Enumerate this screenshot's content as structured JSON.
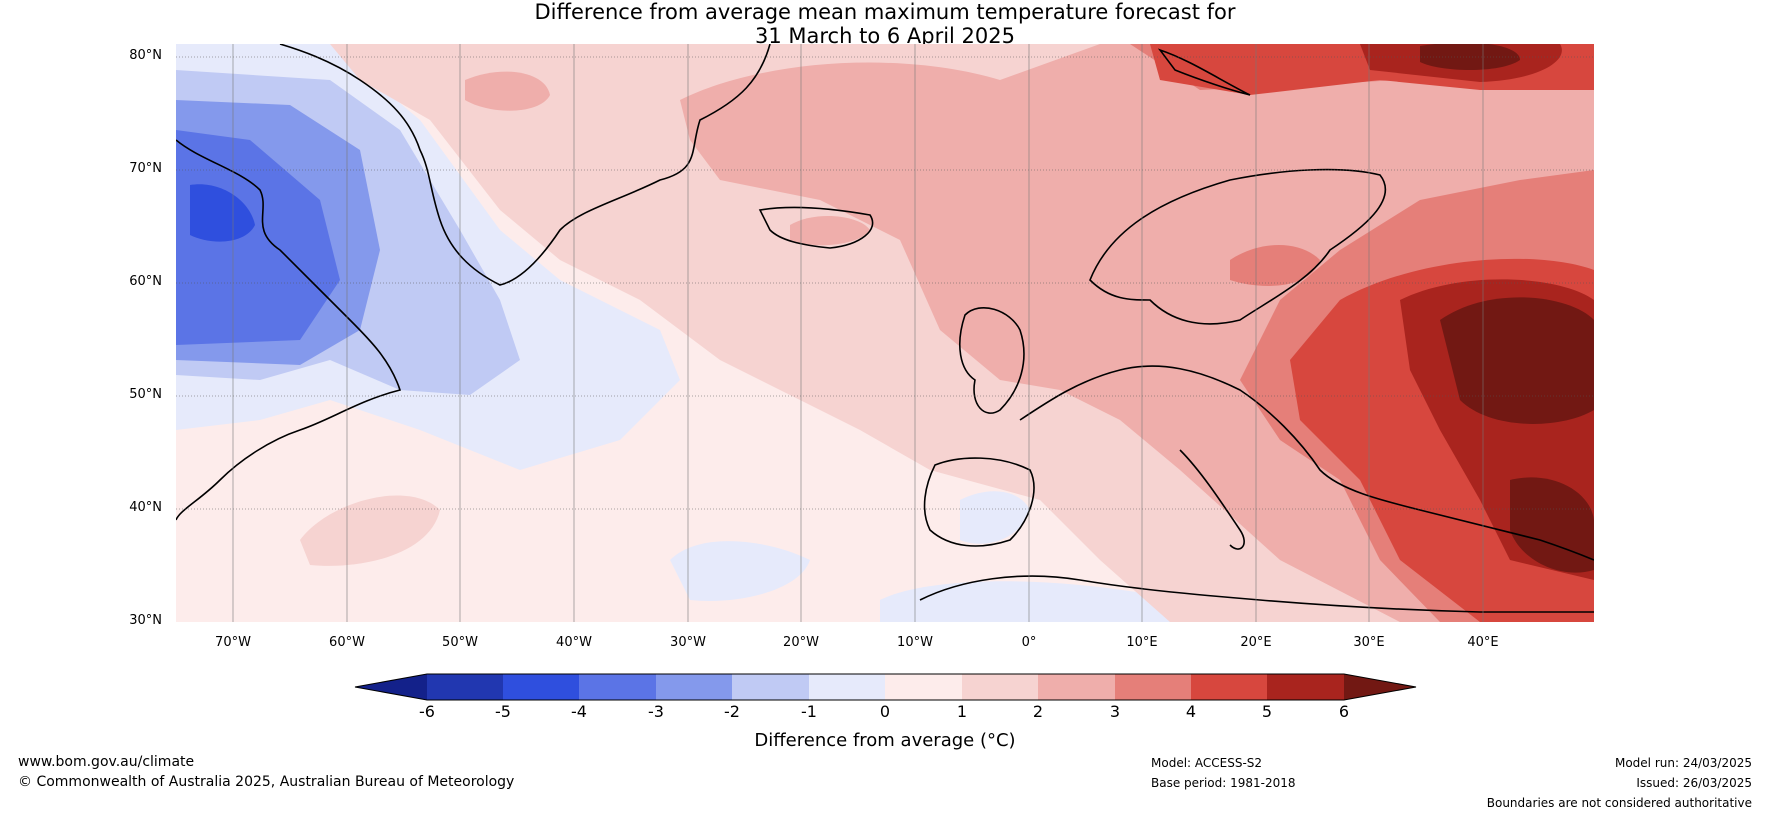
{
  "title": {
    "line1": "Difference from average mean maximum temperature forecast for",
    "line2": "31 March to 6 April 2025"
  },
  "map": {
    "lat_labels": [
      "80°N",
      "70°N",
      "60°N",
      "50°N",
      "40°N",
      "30°N"
    ],
    "lon_labels": [
      "70°W",
      "60°W",
      "50°W",
      "40°W",
      "30°W",
      "20°W",
      "10°W",
      "0°",
      "10°E",
      "20°E",
      "30°E",
      "40°E"
    ],
    "colors": {
      "m6": "#13218a",
      "m5": "#2137b0",
      "m4": "#2f4fde",
      "m3": "#5b74e6",
      "m2": "#8499ec",
      "m1": "#c0caf4",
      "m0": "#e6eafb",
      "p0": "#fdeceb",
      "p1": "#f6d3d1",
      "p2": "#efaeab",
      "p3": "#e57f79",
      "p4": "#d7473e",
      "p5": "#a9241e",
      "p6": "#721813"
    }
  },
  "colorbar": {
    "ticks": [
      "-6",
      "-5",
      "-4",
      "-3",
      "-2",
      "-1",
      "0",
      "1",
      "2",
      "3",
      "4",
      "5",
      "6"
    ],
    "label": "Difference from average (°C)"
  },
  "footer": {
    "website": "www.bom.gov.au/climate",
    "copyright": "© Commonwealth of Australia 2025, Australian Bureau of Meteorology",
    "model": "Model: ACCESS-S2",
    "base_period": "Base period: 1981-2018",
    "model_run": "Model run: 24/03/2025",
    "issued": "Issued: 26/03/2025",
    "boundaries": "Boundaries are not considered authoritative"
  }
}
